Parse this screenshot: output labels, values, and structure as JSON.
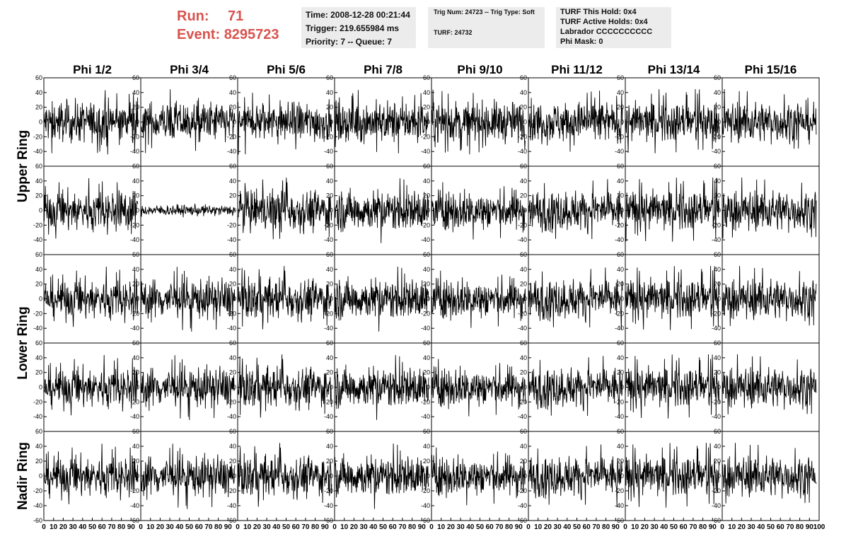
{
  "header": {
    "run_label": "Run:",
    "run_value": "71",
    "event_label": "Event:",
    "event_value": "8295723"
  },
  "info_time": {
    "time": "Time: 2008-12-28 00:21:44",
    "trigger": "Trigger: 219.655984 ms",
    "priority": "Priority: 7 -- Queue: 7"
  },
  "info_trig": {
    "trig": "Trig Num: 24723 -- Trig Type: Soft",
    "turf": "TURF: 24732"
  },
  "info_turf": {
    "this_hold": "TURF This Hold: 0x4",
    "active_holds": "TURF Active Holds: 0x4",
    "labrador": "Labrador CCCCCCCCCC",
    "phi_mask": "Phi Mask: 0"
  },
  "colors": {
    "header_text": "#d9534f",
    "info_bg": "#ececec",
    "trace": "#000000"
  },
  "chart_data": {
    "type": "line",
    "columns": [
      "Phi 1/2",
      "Phi 3/4",
      "Phi 5/6",
      "Phi 7/8",
      "Phi 9/10",
      "Phi 11/12",
      "Phi 13/14",
      "Phi 15/16"
    ],
    "rows": [
      "Upper Ring",
      "Lower Ring",
      "Nadir Ring"
    ],
    "xlim": [
      0,
      100
    ],
    "x_tick_labels": [
      "0",
      "10",
      "20",
      "30",
      "40",
      "50",
      "60",
      "70",
      "80",
      "90",
      "100"
    ],
    "ylim_top": [
      -60,
      60
    ],
    "ylim_bottom": [
      -60,
      60
    ],
    "y_tick_labels_top": [
      "60",
      "40",
      "20",
      "0",
      "-20",
      "-40"
    ],
    "y_tick_labels_bottom": [
      "60",
      "40",
      "20",
      "0",
      "-20",
      "-40",
      "-60"
    ],
    "traces": {
      "n_samples": 260,
      "typical_amplitude": 15,
      "peak_amplitude": 45,
      "quiet_panel": {
        "row": 1,
        "col": 1,
        "amplitude": 4
      }
    }
  }
}
